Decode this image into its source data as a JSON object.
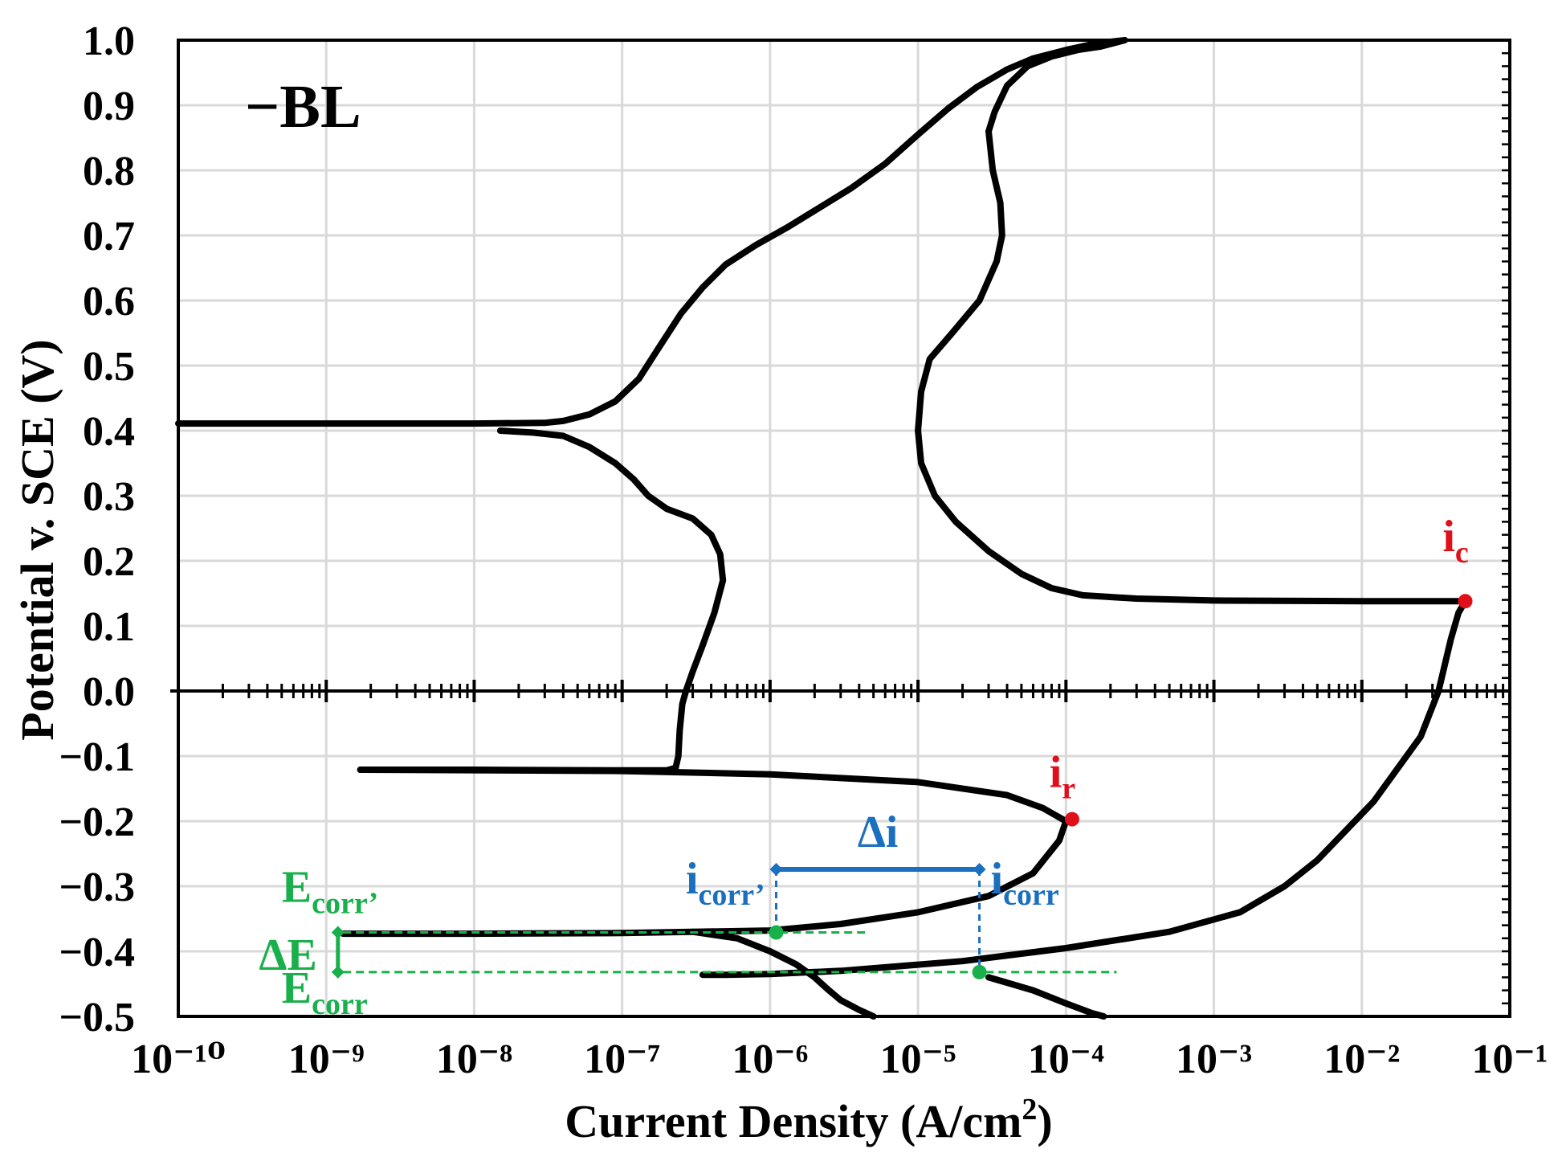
{
  "colors": {
    "curve": "#000000",
    "red": "#e0101a",
    "blue": "#1a6fbf",
    "green": "#19b04b",
    "grid": "#d9d9d9"
  },
  "chart_data": {
    "type": "line",
    "title": "",
    "panel_label": "−BL",
    "xlabel": "Current Density (A/cm",
    "xlabel_sup": "2",
    "xlabel_end": ")",
    "ylabel": "Potential v. SCE (V)",
    "x_scale": "log",
    "xlim": [
      1e-10,
      0.1
    ],
    "ylim": [
      -0.5,
      1.0
    ],
    "grid": true,
    "x_ticks": [
      {
        "value": 1e-10,
        "label": "10⁻¹⁰"
      },
      {
        "value": 1e-09,
        "label": "10⁻⁹"
      },
      {
        "value": 1e-08,
        "label": "10⁻⁸"
      },
      {
        "value": 1e-07,
        "label": "10⁻⁷"
      },
      {
        "value": 1e-06,
        "label": "10⁻⁶"
      },
      {
        "value": 1e-05,
        "label": "10⁻⁵"
      },
      {
        "value": 0.0001,
        "label": "10⁻⁴"
      },
      {
        "value": 0.001,
        "label": "10⁻³"
      },
      {
        "value": 0.01,
        "label": "10⁻²"
      },
      {
        "value": 0.1,
        "label": "10⁻¹"
      }
    ],
    "y_ticks": [
      {
        "value": 1.0,
        "label": "1.0"
      },
      {
        "value": 0.9,
        "label": "0.9"
      },
      {
        "value": 0.8,
        "label": "0.8"
      },
      {
        "value": 0.7,
        "label": "0.7"
      },
      {
        "value": 0.6,
        "label": "0.6"
      },
      {
        "value": 0.5,
        "label": "0.5"
      },
      {
        "value": 0.4,
        "label": "0.4"
      },
      {
        "value": 0.3,
        "label": "0.3"
      },
      {
        "value": 0.2,
        "label": "0.2"
      },
      {
        "value": 0.1,
        "label": "0.1"
      },
      {
        "value": 0.0,
        "label": "0.0"
      },
      {
        "value": -0.1,
        "label": "−0.1"
      },
      {
        "value": -0.2,
        "label": "−0.2"
      },
      {
        "value": -0.3,
        "label": "−0.3"
      },
      {
        "value": -0.4,
        "label": "−0.4"
      },
      {
        "value": -0.5,
        "label": "−0.5"
      }
    ],
    "series": [
      {
        "points": [
          [
            1e-10,
            0.411
          ],
          [
            1e-09,
            0.411
          ],
          [
            1e-08,
            0.411
          ],
          [
            3e-08,
            0.412
          ],
          [
            4e-08,
            0.415
          ],
          [
            6e-08,
            0.425
          ],
          [
            9e-08,
            0.445
          ],
          [
            1.3e-07,
            0.48
          ],
          [
            1.8e-07,
            0.53
          ],
          [
            2.5e-07,
            0.58
          ],
          [
            3.5e-07,
            0.62
          ],
          [
            5e-07,
            0.655
          ],
          [
            8e-07,
            0.685
          ],
          [
            1.3e-06,
            0.712
          ],
          [
            2e-06,
            0.738
          ],
          [
            3.5e-06,
            0.772
          ],
          [
            6e-06,
            0.81
          ],
          [
            1e-05,
            0.855
          ],
          [
            1.6e-05,
            0.895
          ],
          [
            2.5e-05,
            0.928
          ],
          [
            4e-05,
            0.955
          ],
          [
            6e-05,
            0.972
          ],
          [
            0.0001,
            0.985
          ],
          [
            0.00016,
            0.995
          ],
          [
            0.00025,
            1.0
          ]
        ]
      },
      {
        "points": [
          [
            0.00025,
            1.0
          ],
          [
            0.00017,
            0.99
          ],
          [
            0.00012,
            0.985
          ],
          [
            8e-05,
            0.975
          ],
          [
            5.5e-05,
            0.96
          ],
          [
            4e-05,
            0.93
          ],
          [
            3.3e-05,
            0.89
          ],
          [
            3e-05,
            0.86
          ],
          [
            3.2e-05,
            0.8
          ],
          [
            3.6e-05,
            0.75
          ],
          [
            3.7e-05,
            0.7
          ],
          [
            3.4e-05,
            0.66
          ],
          [
            2.6e-05,
            0.6
          ],
          [
            1.7e-05,
            0.55
          ],
          [
            1.2e-05,
            0.51
          ],
          [
            1.05e-05,
            0.46
          ],
          [
            1e-05,
            0.4
          ],
          [
            1.05e-05,
            0.35
          ],
          [
            1.3e-05,
            0.3
          ],
          [
            1.8e-05,
            0.26
          ],
          [
            3e-05,
            0.215
          ],
          [
            5e-05,
            0.18
          ],
          [
            8e-05,
            0.158
          ],
          [
            0.00013,
            0.147
          ],
          [
            0.0003,
            0.142
          ],
          [
            0.001,
            0.139
          ],
          [
            0.01,
            0.138
          ],
          [
            0.03,
            0.138
          ],
          [
            0.05,
            0.138
          ]
        ]
      },
      {
        "points": [
          [
            0.05,
            0.138
          ],
          [
            0.045,
            0.12
          ],
          [
            0.04,
            0.08
          ],
          [
            0.033,
            0.0
          ],
          [
            0.025,
            -0.07
          ],
          [
            0.012,
            -0.17
          ],
          [
            0.005,
            -0.26
          ],
          [
            0.003,
            -0.3
          ],
          [
            0.0015,
            -0.34
          ],
          [
            0.0005,
            -0.37
          ],
          [
            0.0001,
            -0.395
          ],
          [
            2e-05,
            -0.415
          ],
          [
            3e-06,
            -0.43
          ],
          [
            1e-06,
            -0.435
          ],
          [
            5e-07,
            -0.436
          ],
          [
            3.5e-07,
            -0.436
          ]
        ]
      },
      {
        "points": [
          [
            1.7e-09,
            -0.121
          ],
          [
            1e-08,
            -0.121
          ],
          [
            1e-07,
            -0.122
          ],
          [
            2e-07,
            -0.122
          ],
          [
            2.3e-07,
            -0.118
          ],
          [
            2.4e-07,
            -0.1
          ],
          [
            2.45e-07,
            -0.06
          ],
          [
            2.55e-07,
            -0.02
          ],
          [
            2.7e-07,
            0.0
          ],
          [
            3e-07,
            0.03
          ],
          [
            3.5e-07,
            0.07
          ],
          [
            4.2e-07,
            0.12
          ],
          [
            4.8e-07,
            0.17
          ],
          [
            4.6e-07,
            0.21
          ],
          [
            4e-07,
            0.24
          ],
          [
            3e-07,
            0.265
          ],
          [
            2e-07,
            0.28
          ],
          [
            1.5e-07,
            0.3
          ],
          [
            1.2e-07,
            0.325
          ],
          [
            9e-08,
            0.35
          ],
          [
            6e-08,
            0.375
          ],
          [
            4e-08,
            0.392
          ],
          [
            2.5e-08,
            0.397
          ],
          [
            1.5e-08,
            0.4
          ]
        ]
      },
      {
        "points": [
          [
            1.7e-09,
            -0.121
          ],
          [
            1e-07,
            -0.123
          ],
          [
            1e-06,
            -0.128
          ],
          [
            1e-05,
            -0.14
          ],
          [
            4e-05,
            -0.16
          ],
          [
            7e-05,
            -0.18
          ],
          [
            0.0001,
            -0.2
          ],
          [
            9e-05,
            -0.23
          ],
          [
            6e-05,
            -0.28
          ],
          [
            3e-05,
            -0.315
          ],
          [
            1e-05,
            -0.34
          ],
          [
            3e-06,
            -0.358
          ],
          [
            1e-06,
            -0.368
          ],
          [
            1e-07,
            -0.372
          ],
          [
            1e-08,
            -0.373
          ],
          [
            1.3e-09,
            -0.373
          ]
        ]
      },
      {
        "points": [
          [
            3e-07,
            -0.37
          ],
          [
            6e-07,
            -0.38
          ],
          [
            1e-06,
            -0.4
          ],
          [
            1.5e-06,
            -0.42
          ],
          [
            2e-06,
            -0.44
          ],
          [
            2.5e-06,
            -0.46
          ],
          [
            3e-06,
            -0.475
          ],
          [
            4e-06,
            -0.49
          ],
          [
            5e-06,
            -0.5
          ]
        ]
      },
      {
        "points": [
          [
            3e-05,
            -0.44
          ],
          [
            6e-05,
            -0.46
          ],
          [
            0.0001,
            -0.48
          ],
          [
            0.00015,
            -0.495
          ],
          [
            0.00018,
            -0.5
          ]
        ]
      }
    ],
    "annotations": {
      "i_c": {
        "label": "i",
        "sub": "c",
        "x": 0.05,
        "y": 0.138
      },
      "i_r": {
        "label": "i",
        "sub": "r",
        "x": 0.00011,
        "y": -0.197
      },
      "i_corr_prime": {
        "label": "i",
        "sub": "corr’",
        "x": 1.1e-06,
        "y": -0.371
      },
      "i_corr": {
        "label": "i",
        "sub": "corr",
        "x": 2.6e-05,
        "y": -0.432
      },
      "delta_i": {
        "label": "Δi",
        "y": -0.274
      },
      "E_corr_prime": {
        "label": "E",
        "sub": "corr’",
        "y": -0.371
      },
      "E_corr": {
        "label": "E",
        "sub": "corr",
        "y": -0.432
      },
      "delta_E": {
        "label": "ΔE",
        "x": 1.2e-09
      }
    }
  }
}
